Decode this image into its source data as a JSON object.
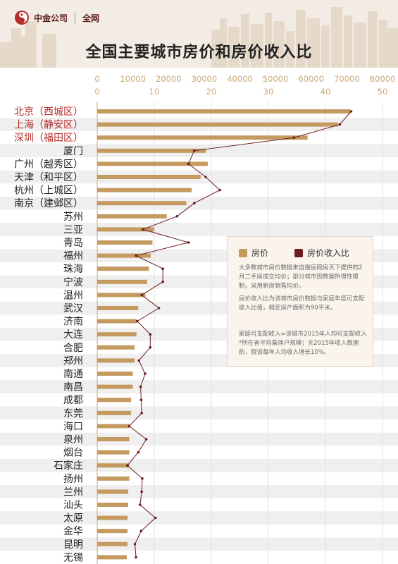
{
  "header": {
    "brand_name": "中金公司",
    "brand_sub": "全网",
    "title": "全国主要城市房价和房价收入比"
  },
  "legend": {
    "price_label": "房价",
    "ratio_label": "房价收入比",
    "note1": "大多数城市房价数据来自搜房网房天下提供的2月二手房成交均价；部分城市因数据所得性限制，采用新房销售均价。",
    "note2": "房价收入比为该城市房价数据与家庭年度可支配收入比值，假定房产面积为90平米。",
    "note3": "家庭可支配收入=该城市2015年人均可支配收入*所在省平均集体户规模；无2015年收入数据的，假设每年人均收入增长10%。"
  },
  "colors": {
    "price": "#c49a60",
    "ratio": "#6b1e1e",
    "highlight_label": "#b52a2a",
    "label": "#222222",
    "axis": "#c9a87c",
    "stripe": "#efefef"
  },
  "chart_data": {
    "type": "bar",
    "orientation": "horizontal",
    "title": "全国主要城市房价和房价收入比",
    "categories": [
      "北京（西城区）",
      "上海（静安区）",
      "深圳（福田区）",
      "厦门",
      "广州（越秀区）",
      "天津（和平区）",
      "杭州（上城区）",
      "南京（建邺区）",
      "苏州",
      "三亚",
      "青岛",
      "福州",
      "珠海",
      "宁波",
      "温州",
      "武汉",
      "济南",
      "大连",
      "合肥",
      "郑州",
      "南通",
      "南昌",
      "成都",
      "东莞",
      "海口",
      "泉州",
      "烟台",
      "石家庄",
      "扬州",
      "兰州",
      "汕头",
      "太原",
      "金华",
      "昆明",
      "无锡"
    ],
    "highlighted": [
      "北京（西城区）",
      "上海（静安区）",
      "深圳（福田区）"
    ],
    "series": [
      {
        "name": "房价",
        "axis": "top",
        "values": [
          71000,
          67500,
          59000,
          30500,
          31000,
          29000,
          26500,
          25000,
          19500,
          16000,
          15500,
          15000,
          14500,
          14000,
          13500,
          11500,
          11000,
          11000,
          10500,
          10500,
          10000,
          10000,
          9500,
          9500,
          9000,
          9000,
          9000,
          9000,
          9000,
          8700,
          8700,
          8500,
          8500,
          8500,
          8300
        ]
      },
      {
        "name": "房价收入比",
        "axis": "bottom",
        "values": [
          44.5,
          42.5,
          34.5,
          17,
          16,
          19,
          21.5,
          17,
          14,
          8,
          16,
          6.8,
          11.5,
          11.5,
          7.8,
          10.8,
          7,
          9.3,
          9.3,
          7.3,
          8.4,
          7.6,
          7.7,
          7.8,
          5.6,
          8.6,
          7.2,
          5.3,
          7.9,
          7.8,
          7.5,
          10.2,
          7.7,
          6.6,
          6.8
        ]
      }
    ],
    "x_top": {
      "ticks": [
        0,
        10000,
        20000,
        30000,
        40000,
        50000,
        60000,
        70000,
        80000
      ],
      "range": [
        0,
        80000
      ]
    },
    "x_bottom": {
      "ticks": [
        0,
        10,
        20,
        30,
        40,
        50
      ],
      "range": [
        0,
        50
      ]
    },
    "legend_position": "right-middle"
  }
}
